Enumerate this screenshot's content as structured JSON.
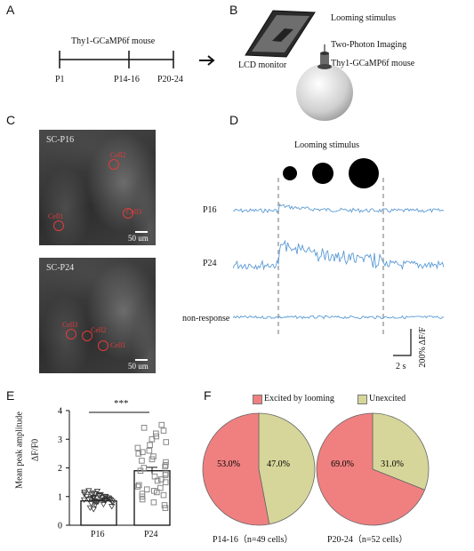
{
  "panelA": {
    "letter": "A",
    "mouse": "Thy1-GCaMP6f  mouse",
    "ticks": [
      "P1",
      "P14-16",
      "P20-24"
    ]
  },
  "panelB": {
    "letter": "B",
    "looming": "Looming stimulus",
    "twophoton": "Two-Photon Imaging",
    "mouse": "Thy1-GCaMP6f  mouse",
    "monitor": "LCD monitor"
  },
  "panelC": {
    "letter": "C",
    "p16": {
      "title": "SC-P16",
      "scale": "50 um",
      "cells": [
        "Cell1",
        "Cell2",
        "Cell3"
      ]
    },
    "p24": {
      "title": "SC-P24",
      "scale": "50 um",
      "cells": [
        "Cell1",
        "Cell2",
        "Cell3"
      ]
    }
  },
  "panelD": {
    "letter": "D",
    "looming": "Looming stimulus",
    "rows": [
      "P16",
      "P24",
      "non-response"
    ],
    "scale_y": "200% ΔF/F",
    "scale_x": "2 s",
    "trace_color": "#5b9bd5"
  },
  "panelE": {
    "letter": "E",
    "ylabel_top": "Mean peak amplitude",
    "ylabel_bot": "ΔF/F0",
    "sig": "***",
    "chart_data": {
      "type": "bar",
      "categories": [
        "P16",
        "P24"
      ],
      "values": [
        0.85,
        1.9
      ],
      "errors": [
        0.04,
        0.12
      ],
      "ylim": [
        0,
        4
      ],
      "yticks": [
        "0",
        "1",
        "2",
        "3",
        "4"
      ],
      "p16_points": [
        0.55,
        0.6,
        0.65,
        0.7,
        0.72,
        0.75,
        0.78,
        0.8,
        0.8,
        0.82,
        0.83,
        0.85,
        0.85,
        0.86,
        0.87,
        0.88,
        0.88,
        0.9,
        0.9,
        0.9,
        0.92,
        0.93,
        0.94,
        0.95,
        0.95,
        0.96,
        0.97,
        0.98,
        1.0,
        1.0,
        1.02,
        1.04,
        1.05,
        1.06,
        1.08,
        1.1,
        1.12,
        1.15,
        1.18,
        1.2
      ],
      "p24_points": [
        0.6,
        0.7,
        0.8,
        0.9,
        1.0,
        1.05,
        1.1,
        1.15,
        1.2,
        1.25,
        1.3,
        1.35,
        1.4,
        1.5,
        1.55,
        1.6,
        1.7,
        1.75,
        1.8,
        1.9,
        2.0,
        2.05,
        2.1,
        2.2,
        2.25,
        2.3,
        2.4,
        2.5,
        2.55,
        2.6,
        2.7,
        2.8,
        2.9,
        3.0,
        3.1,
        3.2,
        3.3,
        3.4,
        3.5
      ]
    }
  },
  "panelF": {
    "letter": "F",
    "legend": [
      "Excited by looming",
      "Unexcited"
    ],
    "colors": {
      "excited": "#f08080",
      "unexcited": "#d6d69a"
    },
    "chart_data": [
      {
        "type": "pie",
        "labels": [
          "Excited by looming",
          "Unexcited"
        ],
        "values": [
          53.0,
          47.0
        ],
        "value_labels": [
          "53.0%",
          "47.0%"
        ]
      },
      {
        "type": "pie",
        "labels": [
          "Excited by looming",
          "Unexcited"
        ],
        "values": [
          69.0,
          31.0
        ],
        "value_labels": [
          "69.0%",
          "31.0%"
        ]
      }
    ],
    "cap1": "P14-16（n=49 cells）",
    "cap2": "P20-24（n=52 cells）"
  }
}
